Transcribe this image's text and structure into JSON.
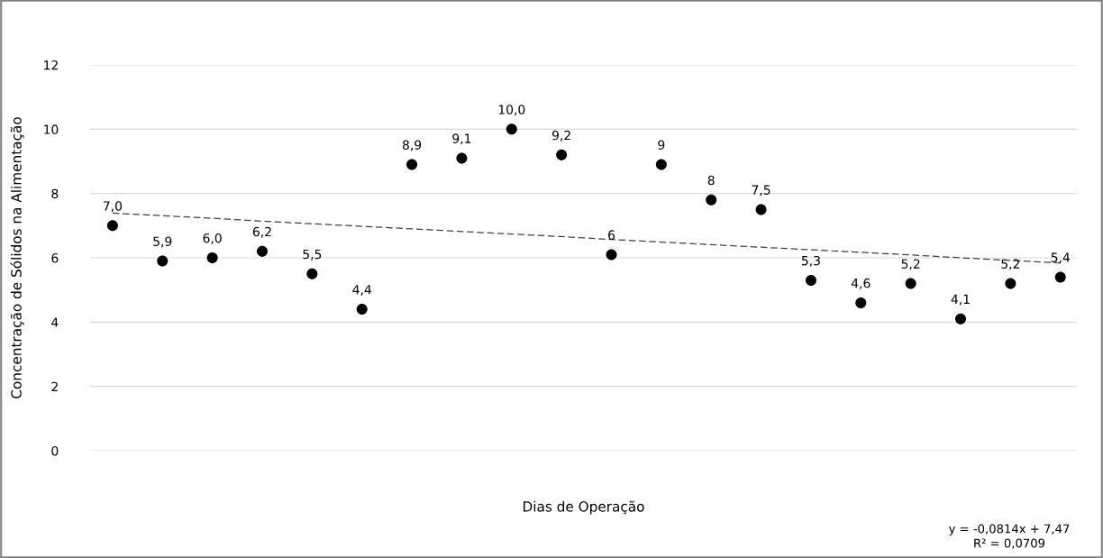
{
  "chart_data": {
    "type": "scatter",
    "xlabel": "Dias de Operação",
    "ylabel": "Concentração de Sólidos na Alimentação",
    "categories": [
      null,
      null,
      null,
      null,
      null,
      null,
      null,
      null,
      null,
      null,
      null,
      null,
      null,
      null,
      null,
      null,
      null,
      null,
      null,
      null
    ],
    "series": [
      {
        "color": "#000000",
        "marker": "circle",
        "values": [
          7.0,
          5.9,
          6.0,
          6.2,
          5.5,
          4.4,
          8.9,
          9.1,
          10.0,
          9.2,
          6.1,
          8.9,
          7.8,
          7.5,
          5.3,
          4.6,
          5.2,
          4.1,
          5.2,
          5.4
        ],
        "value_labels": [
          "7,0",
          "5,9",
          "6,0",
          "6,2",
          "5,5",
          "4,4",
          "8,9",
          "9,1",
          "10,0",
          "9,2",
          "6",
          "9",
          "8",
          "7,5",
          "5,3",
          "4,6",
          "5,2",
          "4,1",
          "5,2",
          "5,4"
        ]
      },
      {
        "type": "line",
        "color": "#404040",
        "line_style": "dashed",
        "marker": "none",
        "values": [
          7.39,
          7.31,
          7.23,
          7.14,
          7.06,
          6.98,
          6.9,
          6.82,
          6.74,
          6.66,
          6.57,
          6.49,
          6.41,
          6.33,
          6.25,
          6.17,
          6.09,
          6.0,
          5.92,
          5.84
        ]
      }
    ],
    "ylim": [
      0,
      12
    ],
    "yticks": [
      0,
      2,
      4,
      6,
      8,
      10,
      12
    ],
    "grid": "y",
    "tick_labels": "y",
    "annotations": [
      "y = -0,0814x + 7,47",
      "R² = 0,0709"
    ]
  }
}
